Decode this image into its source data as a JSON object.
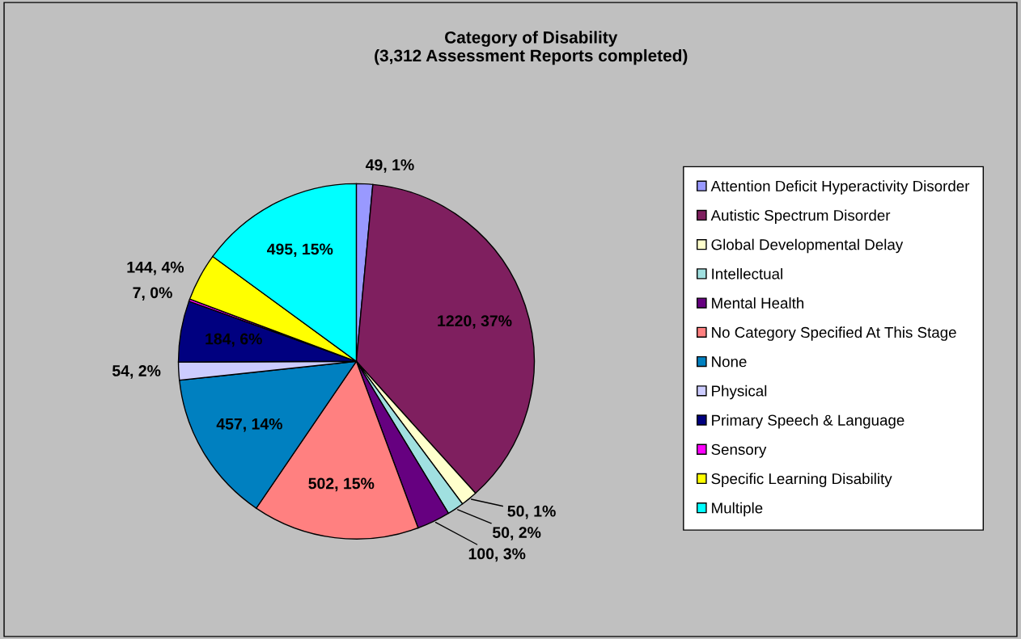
{
  "chart_data": {
    "type": "pie",
    "title": "Category of Disability\n(3,312 Assessment Reports completed)",
    "categories": [
      "Attention Deficit Hyperactivity Disorder",
      "Autistic Spectrum Disorder",
      "Global Developmental Delay",
      "Intellectual",
      "Mental Health",
      "No Category Specified At This Stage",
      "None",
      "Physical",
      "Primary Speech & Language",
      "Sensory",
      "Specific Learning Disability",
      "Multiple"
    ],
    "values": [
      49,
      1220,
      50,
      50,
      100,
      502,
      457,
      54,
      184,
      7,
      144,
      495
    ],
    "value_labels": [
      "49, 1%",
      "1220, 37%",
      "50, 1%",
      "50, 2%",
      "100, 3%",
      "502, 15%",
      "457, 14%",
      "54, 2%",
      "184, 6%",
      "7, 0%",
      "144, 4%",
      "495, 15%"
    ],
    "colors": [
      "#9999ff",
      "#7f1f5f",
      "#ffffcc",
      "#a0e0e0",
      "#660080",
      "#ff8080",
      "#0080c0",
      "#ccccff",
      "#000080",
      "#ff00ff",
      "#ffff00",
      "#00ffff"
    ],
    "legend": "right"
  }
}
